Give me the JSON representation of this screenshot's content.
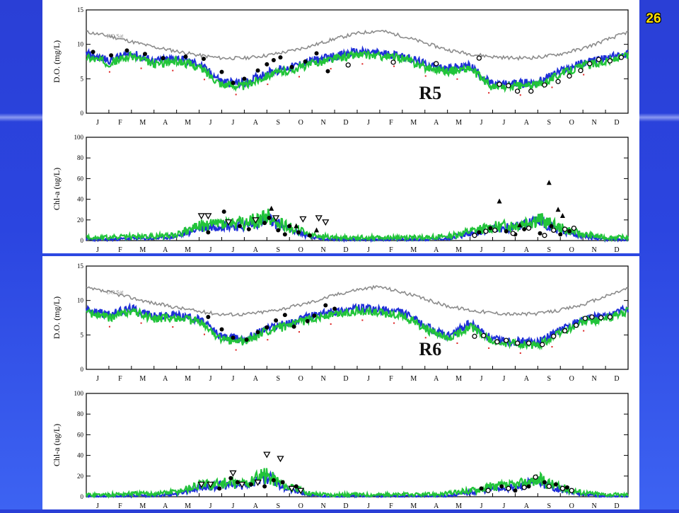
{
  "slide": {
    "page_number": "26"
  },
  "chart_data": [
    {
      "type": "line",
      "id": "r5-do",
      "station_label": "R5",
      "ylabel": "D.O. (mg/L)",
      "ylim": [
        0,
        15
      ],
      "yticks": [
        "0",
        "5",
        "10",
        "15"
      ],
      "months": [
        "J",
        "F",
        "M",
        "A",
        "M",
        "J",
        "J",
        "A",
        "S",
        "O",
        "N",
        "D",
        "J",
        "F",
        "M",
        "A",
        "M",
        "J",
        "J",
        "A",
        "S",
        "O",
        "N",
        "D"
      ],
      "annotation": "DO Sat",
      "colors": {
        "sat": "#8c8c8c",
        "model_a": "#1f2fd8",
        "model_b": "#22c43a",
        "obs": "#000000",
        "red": "#dd2222"
      },
      "x_months": [
        0,
        1,
        2,
        3,
        4,
        5,
        6,
        7,
        8,
        9,
        10,
        11,
        12,
        13,
        14,
        15,
        16,
        17,
        18,
        19,
        20,
        21,
        22,
        23,
        24
      ],
      "do_sat": [
        11.8,
        11.2,
        10.4,
        9.6,
        9.0,
        8.4,
        8.0,
        8.0,
        8.4,
        9.0,
        9.8,
        10.8,
        11.6,
        12.0,
        11.2,
        10.2,
        9.2,
        8.6,
        8.2,
        8.0,
        8.1,
        8.6,
        9.4,
        10.6,
        11.8
      ],
      "model": [
        8.5,
        7.6,
        8.6,
        7.4,
        7.9,
        7.0,
        4.5,
        4.2,
        5.8,
        6.5,
        7.5,
        8.2,
        8.8,
        8.6,
        8.3,
        7.0,
        6.4,
        6.8,
        4.0,
        4.2,
        4.4,
        6.0,
        7.2,
        7.8,
        8.6
      ],
      "obs_filled": [
        [
          0.3,
          8.9
        ],
        [
          1.1,
          8.4
        ],
        [
          1.8,
          9.1
        ],
        [
          2.6,
          8.6
        ],
        [
          3.4,
          8.0
        ],
        [
          4.4,
          8.2
        ],
        [
          5.2,
          7.9
        ],
        [
          6.0,
          6.0
        ],
        [
          6.5,
          4.4
        ],
        [
          7.0,
          5.0
        ],
        [
          7.6,
          6.2
        ],
        [
          8.0,
          7.1
        ],
        [
          8.3,
          7.7
        ],
        [
          8.6,
          8.1
        ],
        [
          9.1,
          6.7
        ],
        [
          9.7,
          7.5
        ],
        [
          10.2,
          8.7
        ],
        [
          10.7,
          6.1
        ]
      ],
      "obs_open": [
        [
          11.6,
          7.0
        ],
        [
          13.6,
          7.4
        ],
        [
          15.5,
          7.2
        ],
        [
          17.4,
          8.0
        ],
        [
          18.3,
          4.2
        ],
        [
          18.7,
          4.0
        ],
        [
          19.1,
          3.2
        ],
        [
          19.7,
          3.2
        ],
        [
          20.3,
          4.1
        ],
        [
          20.9,
          4.6
        ],
        [
          21.4,
          5.4
        ],
        [
          21.9,
          6.2
        ],
        [
          22.3,
          7.2
        ],
        [
          22.7,
          7.8
        ],
        [
          23.2,
          7.6
        ],
        [
          23.7,
          8.1
        ]
      ]
    },
    {
      "type": "line",
      "id": "r5-chla",
      "ylabel": "Chl-a (ug/L)",
      "ylim": [
        0,
        100
      ],
      "yticks": [
        "0",
        "20",
        "40",
        "60",
        "80",
        "100"
      ],
      "months": [
        "J",
        "F",
        "M",
        "A",
        "M",
        "J",
        "J",
        "A",
        "S",
        "O",
        "N",
        "D",
        "J",
        "F",
        "M",
        "A",
        "M",
        "J",
        "J",
        "A",
        "S",
        "O",
        "N",
        "D"
      ],
      "model": [
        2,
        2,
        3,
        3,
        5,
        13,
        16,
        15,
        22,
        12,
        4,
        2,
        2,
        2,
        2,
        2,
        3,
        8,
        12,
        14,
        20,
        11,
        5,
        2,
        2
      ],
      "obs_triangle_down": [
        [
          5.1,
          24
        ],
        [
          5.4,
          24
        ],
        [
          6.3,
          18
        ],
        [
          7.5,
          20
        ],
        [
          8.4,
          22
        ],
        [
          9.6,
          21
        ],
        [
          10.3,
          22
        ],
        [
          10.6,
          18
        ]
      ],
      "obs_triangle_up": [
        [
          8.2,
          31
        ],
        [
          18.3,
          38
        ],
        [
          19.2,
          15
        ],
        [
          20.5,
          56
        ],
        [
          20.9,
          30
        ],
        [
          21.1,
          24
        ],
        [
          9.3,
          14
        ],
        [
          10.2,
          10
        ]
      ],
      "obs_filled": [
        [
          5.4,
          8
        ],
        [
          6.1,
          28
        ],
        [
          6.8,
          14
        ],
        [
          7.2,
          11
        ],
        [
          7.9,
          17
        ],
        [
          8.1,
          22
        ],
        [
          8.5,
          10
        ],
        [
          8.8,
          6
        ],
        [
          9.0,
          14
        ],
        [
          9.4,
          8
        ],
        [
          9.9,
          5
        ],
        [
          17.4,
          8
        ],
        [
          17.9,
          12
        ],
        [
          18.6,
          9
        ],
        [
          19.0,
          6
        ],
        [
          19.4,
          11
        ],
        [
          20.1,
          7
        ],
        [
          20.6,
          14
        ],
        [
          21.0,
          6
        ],
        [
          21.4,
          9
        ]
      ],
      "obs_open": [
        [
          17.2,
          5
        ],
        [
          17.7,
          9
        ],
        [
          18.1,
          10
        ],
        [
          18.9,
          7
        ],
        [
          19.6,
          12
        ],
        [
          20.3,
          5
        ],
        [
          20.7,
          10
        ],
        [
          21.2,
          11
        ],
        [
          21.6,
          12
        ]
      ]
    },
    {
      "type": "line",
      "id": "r6-do",
      "station_label": "R6",
      "ylabel": "D.O. (mg/L)",
      "ylim": [
        0,
        15
      ],
      "yticks": [
        "0",
        "5",
        "10",
        "15"
      ],
      "months": [
        "J",
        "F",
        "M",
        "A",
        "M",
        "J",
        "J",
        "A",
        "S",
        "O",
        "N",
        "D",
        "J",
        "F",
        "M",
        "A",
        "M",
        "J",
        "J",
        "A",
        "S",
        "O",
        "N",
        "D"
      ],
      "annotation": "DO Sat",
      "do_sat": [
        11.8,
        11.2,
        10.4,
        9.6,
        9.0,
        8.4,
        8.0,
        8.0,
        8.4,
        9.0,
        9.8,
        10.8,
        11.6,
        12.0,
        11.2,
        10.2,
        9.2,
        8.6,
        8.2,
        8.0,
        8.1,
        8.6,
        9.4,
        10.6,
        11.8
      ],
      "model": [
        8.6,
        7.8,
        8.8,
        7.6,
        7.8,
        7.2,
        4.6,
        4.3,
        5.9,
        6.6,
        7.7,
        8.3,
        8.8,
        8.5,
        8.2,
        6.2,
        4.6,
        6.6,
        4.2,
        4.0,
        3.8,
        5.6,
        7.2,
        7.6,
        8.7
      ],
      "obs_filled": [
        [
          5.4,
          7.6
        ],
        [
          6.0,
          5.8
        ],
        [
          6.5,
          4.6
        ],
        [
          7.1,
          4.3
        ],
        [
          7.6,
          5.4
        ],
        [
          8.0,
          6.1
        ],
        [
          8.4,
          7.1
        ],
        [
          8.8,
          7.9
        ],
        [
          9.2,
          6.2
        ],
        [
          9.8,
          7.0
        ],
        [
          10.1,
          7.8
        ],
        [
          10.6,
          9.3
        ],
        [
          11.0,
          8.8
        ]
      ],
      "obs_open": [
        [
          17.2,
          4.8
        ],
        [
          17.6,
          4.9
        ],
        [
          18.2,
          4.0
        ],
        [
          18.6,
          4.2
        ],
        [
          19.1,
          3.8
        ],
        [
          19.6,
          3.8
        ],
        [
          20.2,
          3.6
        ],
        [
          20.7,
          4.8
        ],
        [
          21.2,
          5.6
        ],
        [
          21.7,
          6.4
        ],
        [
          22.1,
          7.4
        ],
        [
          22.4,
          7.6
        ],
        [
          22.8,
          7.5
        ],
        [
          23.2,
          7.6
        ]
      ]
    },
    {
      "type": "line",
      "id": "r6-chla",
      "ylabel": "Chl-a (ug/L)",
      "ylim": [
        0,
        100
      ],
      "yticks": [
        "0",
        "20",
        "40",
        "60",
        "80",
        "100"
      ],
      "months": [
        "J",
        "F",
        "M",
        "A",
        "M",
        "J",
        "J",
        "A",
        "S",
        "O",
        "N",
        "D",
        "J",
        "F",
        "M",
        "A",
        "M",
        "J",
        "J",
        "A",
        "S",
        "O",
        "N",
        "D"
      ],
      "model": [
        1,
        1,
        2,
        2,
        4,
        10,
        12,
        12,
        20,
        8,
        2,
        1,
        1,
        1,
        1,
        1,
        2,
        5,
        9,
        10,
        16,
        8,
        3,
        1,
        1
      ],
      "obs_triangle_down": [
        [
          5.1,
          12
        ],
        [
          5.5,
          12
        ],
        [
          6.5,
          23
        ],
        [
          6.9,
          12
        ],
        [
          7.6,
          14
        ],
        [
          8.0,
          41
        ],
        [
          8.6,
          37
        ],
        [
          9.1,
          8
        ],
        [
          9.5,
          6
        ]
      ],
      "obs_filled": [
        [
          5.9,
          8
        ],
        [
          6.4,
          18
        ],
        [
          6.7,
          14
        ],
        [
          7.3,
          12
        ],
        [
          7.9,
          10
        ],
        [
          8.3,
          16
        ],
        [
          8.7,
          14
        ],
        [
          9.3,
          10
        ],
        [
          17.5,
          8
        ],
        [
          18.4,
          10
        ],
        [
          19.0,
          6
        ],
        [
          19.6,
          10
        ],
        [
          20.3,
          14
        ],
        [
          20.8,
          12
        ],
        [
          21.3,
          9
        ]
      ],
      "obs_open": [
        [
          17.8,
          6
        ],
        [
          18.7,
          8
        ],
        [
          19.4,
          9
        ],
        [
          19.9,
          19
        ],
        [
          20.5,
          10
        ],
        [
          21.1,
          8
        ],
        [
          21.5,
          6
        ]
      ]
    }
  ]
}
